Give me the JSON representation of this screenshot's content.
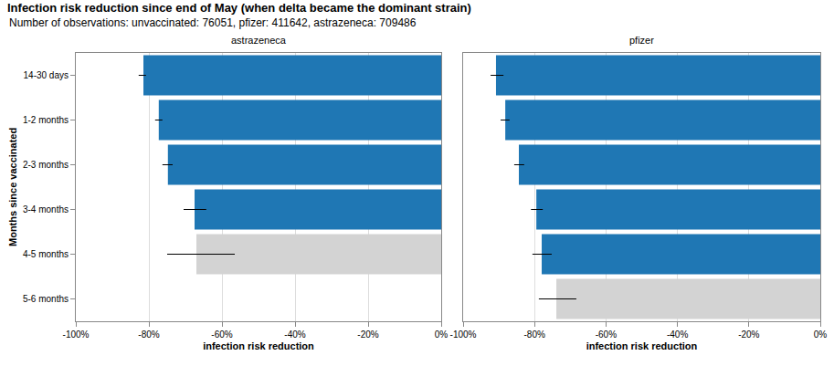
{
  "title": "Infection risk reduction since end of May (when delta became the dominant strain)",
  "subtitle": "Number of observations: unvaccinated: 76051, pfizer: 411642, astrazeneca: 709486",
  "chart_data": [
    {
      "type": "bar",
      "orientation": "horizontal",
      "title": "astrazeneca",
      "ylabel": "Months since vaccinated",
      "xlabel": "infection risk reduction",
      "categories": [
        "14-30 days",
        "1-2 months",
        "2-3 months",
        "3-4 months",
        "4-5 months",
        "5-6 months"
      ],
      "values": [
        -81.5,
        -77.3,
        -74.8,
        -67.5,
        -67,
        null
      ],
      "errors": [
        [
          -82.8,
          -80.8
        ],
        [
          -78.3,
          -76.3
        ],
        [
          -76.3,
          -73.5
        ],
        [
          -70.5,
          -64.3
        ],
        [
          -75,
          -56.5
        ],
        null
      ],
      "colors": [
        "#1f77b4",
        "#1f77b4",
        "#1f77b4",
        "#1f77b4",
        "#d3d3d3",
        null
      ],
      "xlim": [
        -100,
        0
      ],
      "xticks": [
        {
          "value": -100,
          "label": "-100%"
        },
        {
          "value": -80,
          "label": "-80%"
        },
        {
          "value": -60,
          "label": "-60%"
        },
        {
          "value": -40,
          "label": "-40%"
        },
        {
          "value": -20,
          "label": "-20%"
        },
        {
          "value": 0,
          "label": "0%"
        }
      ],
      "grid": true
    },
    {
      "type": "bar",
      "orientation": "horizontal",
      "title": "pfizer",
      "xlabel": "infection risk reduction",
      "categories": [
        "14-30 days",
        "1-2 months",
        "2-3 months",
        "3-4 months",
        "4-5 months",
        "5-6 months"
      ],
      "values": [
        -90.8,
        -88.2,
        -84.4,
        -79.5,
        -78,
        -73.9
      ],
      "errors": [
        [
          -92.3,
          -88.7
        ],
        [
          -89.5,
          -87
        ],
        [
          -85.7,
          -82.9
        ],
        [
          -81,
          -77.7
        ],
        [
          -80.6,
          -75.2
        ],
        [
          -78.8,
          -68.3
        ]
      ],
      "colors": [
        "#1f77b4",
        "#1f77b4",
        "#1f77b4",
        "#1f77b4",
        "#1f77b4",
        "#d3d3d3"
      ],
      "xlim": [
        -100,
        0
      ],
      "xticks": [
        {
          "value": -100,
          "label": "-100%"
        },
        {
          "value": -80,
          "label": "-80%"
        },
        {
          "value": -60,
          "label": "-60%"
        },
        {
          "value": -40,
          "label": "-40%"
        },
        {
          "value": -20,
          "label": "-20%"
        },
        {
          "value": 0,
          "label": "0%"
        }
      ],
      "tick_labels": "x",
      "grid": true
    }
  ]
}
